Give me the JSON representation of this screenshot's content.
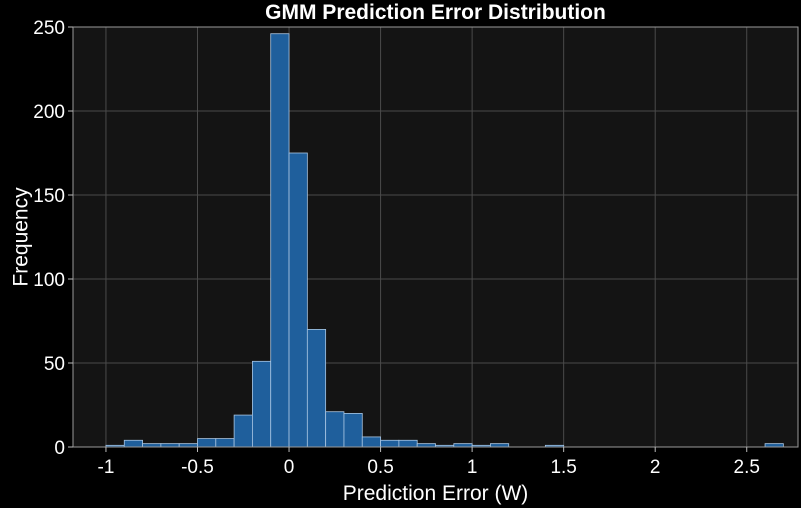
{
  "chart_data": {
    "type": "bar",
    "title": "GMM Prediction Error Distribution",
    "xlabel": "Prediction Error (W)",
    "ylabel": "Frequency",
    "xlim": [
      -1.18,
      2.78
    ],
    "ylim": [
      0,
      250
    ],
    "xticks": [
      -1,
      -0.5,
      0,
      0.5,
      1,
      1.5,
      2,
      2.5
    ],
    "xtick_labels": [
      "-1",
      "-0.5",
      "0",
      "0.5",
      "1",
      "1.5",
      "2",
      "2.5"
    ],
    "yticks": [
      0,
      50,
      100,
      150,
      200,
      250
    ],
    "ytick_labels": [
      "0",
      "50",
      "100",
      "150",
      "200",
      "250"
    ],
    "grid": true,
    "bin_width": 0.1,
    "bin_start": -1.0,
    "values": [
      1,
      4,
      2,
      2,
      2,
      5,
      5,
      19,
      51,
      246,
      175,
      70,
      21,
      20,
      6,
      4,
      4,
      2,
      1,
      2,
      1,
      2,
      0,
      0,
      1,
      0,
      0,
      0,
      0,
      0,
      0,
      0,
      0,
      0,
      0,
      0,
      2
    ],
    "colors": {
      "figure_background": "#000000",
      "axes_background": "#141414",
      "bar_fill": "#1f5f9c",
      "bar_edge": "#a9c6e3",
      "grid": "#4a4a4a",
      "text": "#ffffff"
    }
  }
}
